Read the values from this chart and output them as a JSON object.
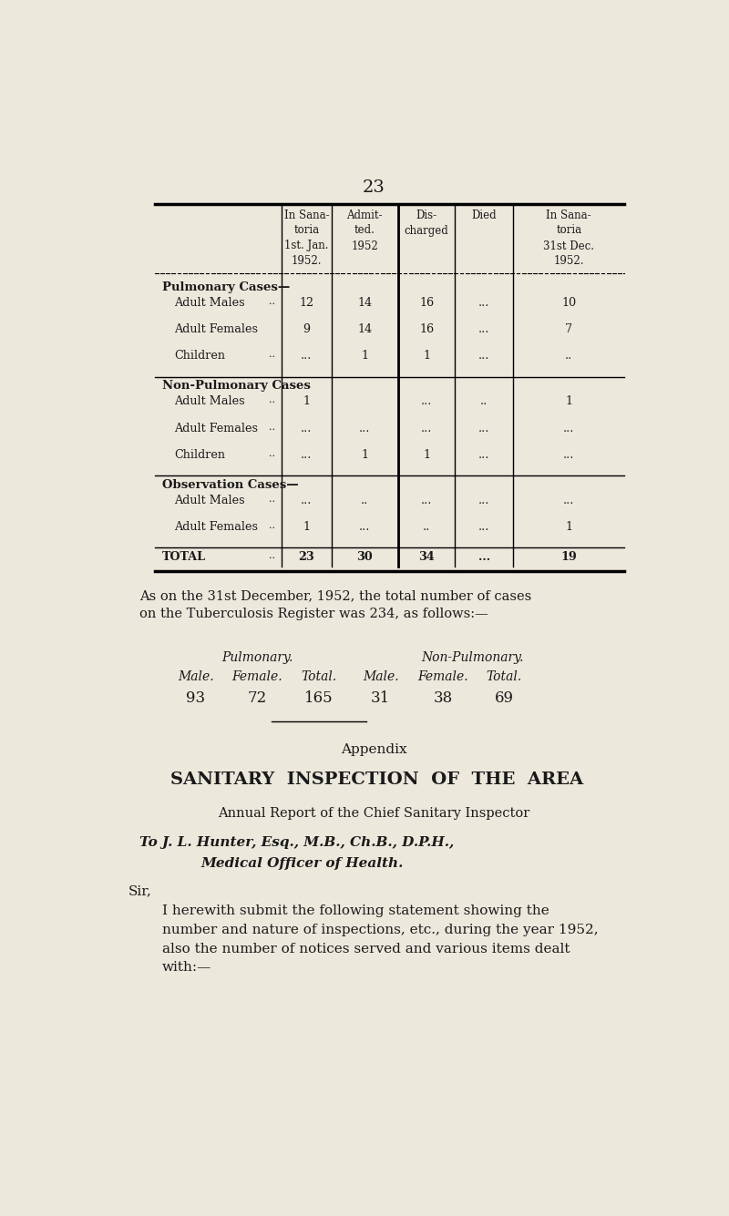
{
  "bg_color": "#EDE8DC",
  "page_number": "23",
  "table": {
    "col_headers": [
      "In Sana-\ntoria\n1st. Jan.\n1952.",
      "Admit-\nted.\n1952",
      "Dis-\ncharged",
      "Died",
      "In Sana-\ntoria\n31st Dec.\n1952."
    ],
    "sections": [
      {
        "section_title": "Pulmonary Cases—",
        "rows": [
          {
            "label": "Adult Males",
            "label_dots": "..",
            "values": [
              "12",
              "14",
              "16",
              "...",
              "10"
            ]
          },
          {
            "label": "Adult Females",
            "label_dots": "",
            "values": [
              "9",
              "14",
              "16",
              "...",
              "7"
            ]
          },
          {
            "label": "Children",
            "label_dots": "..",
            "values": [
              "...",
              "1",
              "1",
              "...",
              ".."
            ]
          },
          {
            "section_break": true
          }
        ]
      },
      {
        "section_title": "Non-Pulmonary Cases",
        "rows": [
          {
            "label": "Adult Males",
            "label_dots": "..",
            "values": [
              "1",
              "",
              "...",
              "..",
              "1"
            ]
          },
          {
            "label": "Adult Females",
            "label_dots": "..",
            "values": [
              "...",
              "...",
              "...",
              "...",
              "..."
            ]
          },
          {
            "label": "Children",
            "label_dots": "..",
            "values": [
              "...",
              "1",
              "1",
              "...",
              "..."
            ]
          },
          {
            "section_break": true
          }
        ]
      },
      {
        "section_title": "Observation Cases—",
        "rows": [
          {
            "label": "Adult Males",
            "label_dots": "..",
            "values": [
              "...",
              "..",
              "...",
              "...",
              "..."
            ]
          },
          {
            "label": "Adult Females",
            "label_dots": "..",
            "values": [
              "1",
              "...",
              "..",
              "...",
              "1"
            ]
          },
          {
            "section_break": true
          }
        ]
      },
      {
        "section_title": "",
        "rows": [
          {
            "label": "TOTAL",
            "label_dots": "..",
            "values": [
              "23",
              "30",
              "34",
              "...",
              "19"
            ],
            "bold": true
          }
        ]
      }
    ]
  },
  "para1": "As on the 31st December, 1952, the total number of cases\non the Tuberculosis Register was 234, as follows:—",
  "tb_headers_left": "Pulmonary.",
  "tb_headers_right": "Non-Pulmonary.",
  "tb_col_headers": [
    "Male.",
    "Female.",
    "Total.",
    "Male.",
    "Female.",
    "Total."
  ],
  "tb_values": [
    "93",
    "72",
    "165",
    "31",
    "38",
    "69"
  ],
  "appendix_title": "Appendix",
  "sanitary_title": "SANITARY  INSPECTION  OF  THE  AREA",
  "annual_report": "Annual Report of the Chief Sanitary Inspector",
  "to_line": "To J. L. Hunter, Esq., M.B., Ch.B., D.P.H.,",
  "medical_line": "Medical Officer of Health.",
  "sir_line": "Sir,",
  "body_text": "I herewith submit the following statement showing the\nnumber and nature of inspections, etc., during the year 1952,\nalso the number of notices served and various items dealt\nwith:—"
}
